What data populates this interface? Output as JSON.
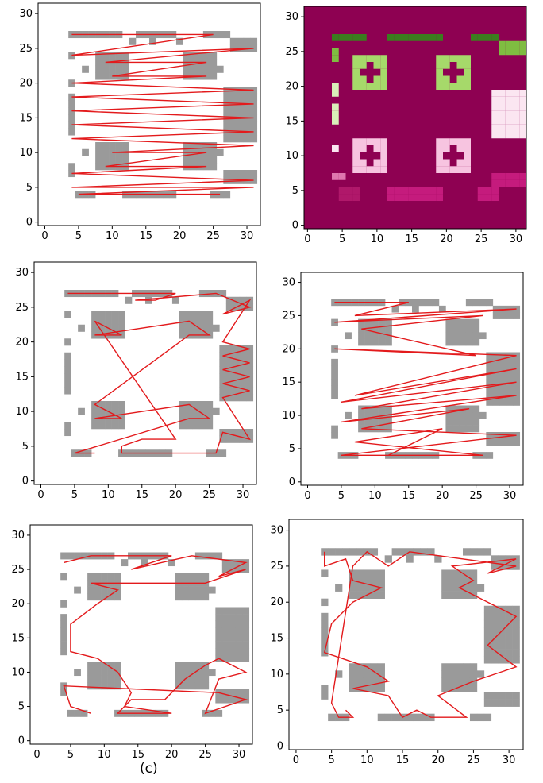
{
  "caption": "(c)",
  "chart_data": [
    {
      "type": "scatter",
      "panel": 1,
      "xlim": [
        -1,
        32
      ],
      "ylim": [
        -0.5,
        31.5
      ],
      "xticks": [
        0,
        5,
        10,
        15,
        20,
        25,
        30
      ],
      "yticks": [
        0,
        5,
        10,
        15,
        20,
        25,
        30
      ],
      "style": "occupancy-grid with red path",
      "path": [
        [
          4,
          27
        ],
        [
          25,
          27
        ],
        [
          4,
          24
        ],
        [
          31,
          25
        ],
        [
          9,
          23
        ],
        [
          24,
          23
        ],
        [
          10,
          21
        ],
        [
          24,
          21
        ],
        [
          4,
          20
        ],
        [
          31,
          19
        ],
        [
          4,
          18
        ],
        [
          31,
          17
        ],
        [
          4,
          16
        ],
        [
          31,
          15
        ],
        [
          4,
          14
        ],
        [
          31,
          13
        ],
        [
          4,
          12
        ],
        [
          31,
          11
        ],
        [
          10,
          10
        ],
        [
          24,
          10
        ],
        [
          9,
          8
        ],
        [
          24,
          8
        ],
        [
          4,
          7
        ],
        [
          31,
          6
        ],
        [
          4,
          5
        ],
        [
          31,
          5
        ],
        [
          5,
          4
        ],
        [
          26,
          4
        ]
      ]
    },
    {
      "type": "heatmap",
      "panel": 2,
      "xlim": [
        -0.5,
        31.5
      ],
      "ylim": [
        -0.5,
        31.5
      ],
      "xticks": [
        0,
        5,
        10,
        15,
        20,
        25,
        30
      ],
      "yticks": [
        0,
        5,
        10,
        15,
        20,
        25,
        30
      ],
      "colormap": "PiYG",
      "background": "#8e0152"
    },
    {
      "type": "scatter",
      "panel": 3,
      "xlim": [
        -1,
        32
      ],
      "ylim": [
        -0.5,
        31.5
      ],
      "xticks": [
        0,
        5,
        10,
        15,
        20,
        25,
        30
      ],
      "yticks": [
        0,
        5,
        10,
        15,
        20,
        25,
        30
      ],
      "style": "occupancy-grid with red path",
      "path": [
        [
          4,
          27
        ],
        [
          7,
          27
        ],
        [
          14,
          27
        ],
        [
          20,
          27
        ],
        [
          17,
          26
        ],
        [
          14,
          26
        ],
        [
          26,
          27
        ],
        [
          31,
          25
        ],
        [
          27,
          24
        ],
        [
          31,
          26
        ],
        [
          27,
          20
        ],
        [
          31,
          19
        ],
        [
          27,
          18
        ],
        [
          31,
          17
        ],
        [
          27,
          16
        ],
        [
          31,
          15
        ],
        [
          27,
          14
        ],
        [
          31,
          13
        ],
        [
          27,
          12
        ],
        [
          31,
          6
        ],
        [
          27,
          7
        ],
        [
          26,
          4
        ],
        [
          21,
          4
        ],
        [
          12,
          4
        ],
        [
          12,
          5
        ],
        [
          15,
          6
        ],
        [
          20,
          6
        ],
        [
          8,
          23
        ],
        [
          12,
          21
        ],
        [
          8,
          21
        ],
        [
          22,
          23
        ],
        [
          25,
          21
        ],
        [
          22,
          21
        ],
        [
          8,
          11
        ],
        [
          12,
          9
        ],
        [
          8,
          9
        ],
        [
          22,
          11
        ],
        [
          25,
          9
        ],
        [
          22,
          9
        ],
        [
          5,
          4
        ],
        [
          8,
          4
        ]
      ]
    },
    {
      "type": "scatter",
      "panel": 4,
      "xlim": [
        -1,
        32
      ],
      "ylim": [
        -0.5,
        31.5
      ],
      "xticks": [
        0,
        5,
        10,
        15,
        20,
        25,
        30
      ],
      "yticks": [
        0,
        5,
        10,
        15,
        20,
        25,
        30
      ],
      "style": "occupancy-grid with red path",
      "path": [
        [
          4,
          27
        ],
        [
          15,
          27
        ],
        [
          7,
          25
        ],
        [
          31,
          26
        ],
        [
          4,
          24
        ],
        [
          26,
          25
        ],
        [
          8,
          23
        ],
        [
          25,
          19
        ],
        [
          4,
          20
        ],
        [
          31,
          19
        ],
        [
          7,
          13
        ],
        [
          31,
          17
        ],
        [
          5,
          12
        ],
        [
          31,
          15
        ],
        [
          8,
          11
        ],
        [
          31,
          13
        ],
        [
          5,
          9
        ],
        [
          24,
          11
        ],
        [
          8,
          8
        ],
        [
          31,
          7
        ],
        [
          5,
          4
        ],
        [
          26,
          4
        ],
        [
          7,
          6
        ],
        [
          20,
          8
        ],
        [
          12,
          4
        ],
        [
          20,
          4
        ]
      ]
    },
    {
      "type": "scatter",
      "panel": 5,
      "xlim": [
        -1,
        32
      ],
      "ylim": [
        -0.5,
        31.5
      ],
      "xticks": [
        0,
        5,
        10,
        15,
        20,
        25,
        30
      ],
      "yticks": [
        0,
        5,
        10,
        15,
        20,
        25,
        30
      ],
      "style": "occupancy-grid with red path",
      "path": [
        [
          4,
          26
        ],
        [
          8,
          27
        ],
        [
          14,
          27
        ],
        [
          20,
          27
        ],
        [
          14,
          25
        ],
        [
          23,
          27
        ],
        [
          31,
          26
        ],
        [
          27,
          24
        ],
        [
          31,
          25
        ],
        [
          25,
          23
        ],
        [
          8,
          23
        ],
        [
          12,
          22
        ],
        [
          9,
          20
        ],
        [
          5,
          17
        ],
        [
          5,
          13
        ],
        [
          9,
          12
        ],
        [
          12,
          10
        ],
        [
          14,
          7
        ],
        [
          13,
          5
        ],
        [
          20,
          4
        ],
        [
          12,
          4
        ],
        [
          14,
          6
        ],
        [
          19,
          6
        ],
        [
          22,
          9
        ],
        [
          25,
          11
        ],
        [
          27,
          12
        ],
        [
          31,
          10
        ],
        [
          27,
          9
        ],
        [
          25,
          4
        ],
        [
          31,
          6
        ],
        [
          27,
          7
        ],
        [
          4,
          8
        ],
        [
          5,
          5
        ],
        [
          8,
          4
        ]
      ]
    },
    {
      "type": "scatter",
      "panel": 6,
      "xlim": [
        -1,
        32
      ],
      "ylim": [
        -0.5,
        31.5
      ],
      "xticks": [
        0,
        5,
        10,
        15,
        20,
        25,
        30
      ],
      "yticks": [
        0,
        5,
        10,
        15,
        20,
        25,
        30
      ],
      "style": "occupancy-grid with red path",
      "path": [
        [
          4,
          27
        ],
        [
          4,
          25
        ],
        [
          7,
          26
        ],
        [
          8,
          23
        ],
        [
          12,
          22
        ],
        [
          8,
          20
        ],
        [
          5,
          17
        ],
        [
          4,
          13
        ],
        [
          7,
          12
        ],
        [
          10,
          11
        ],
        [
          13,
          9
        ],
        [
          8,
          8
        ],
        [
          13,
          7
        ],
        [
          15,
          4
        ],
        [
          17,
          5
        ],
        [
          19,
          4
        ],
        [
          24,
          4
        ],
        [
          20,
          7
        ],
        [
          25,
          9
        ],
        [
          31,
          11
        ],
        [
          27,
          14
        ],
        [
          31,
          18
        ],
        [
          27,
          20
        ],
        [
          23,
          22
        ],
        [
          25,
          23
        ],
        [
          22,
          25
        ],
        [
          31,
          26
        ],
        [
          27,
          24
        ],
        [
          31,
          25
        ],
        [
          16,
          27
        ],
        [
          13,
          25
        ],
        [
          10,
          27
        ],
        [
          8,
          25
        ],
        [
          5,
          6
        ],
        [
          6,
          4
        ],
        [
          8,
          4
        ],
        [
          7,
          5
        ]
      ]
    }
  ]
}
